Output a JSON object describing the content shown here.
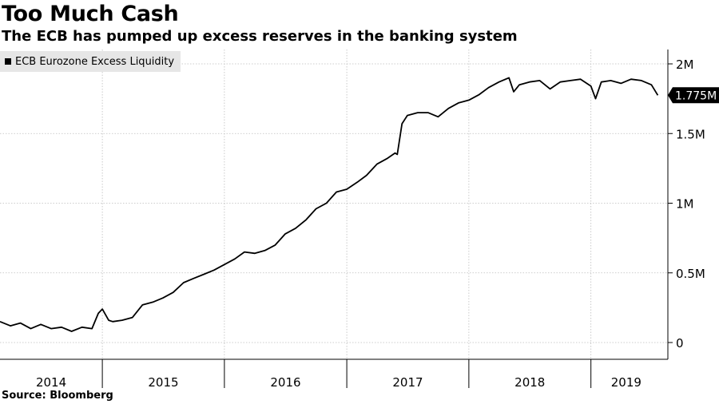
{
  "title": "Too Much Cash",
  "subtitle": "The ECB has pumped up excess reserves in the banking system",
  "source": "Source: Bloomberg",
  "chart_data": {
    "type": "line",
    "legend": "ECB Eurozone Excess Liquidity",
    "legend_position": "top-left",
    "grid": true,
    "series_color": "#000000",
    "last_value_label": "1.775M",
    "y_ticks": [
      {
        "value": 0,
        "label": "0"
      },
      {
        "value": 500000,
        "label": "0.5M"
      },
      {
        "value": 1000000,
        "label": "1M"
      },
      {
        "value": 1500000,
        "label": "1.5M"
      },
      {
        "value": 2000000,
        "label": "2M"
      }
    ],
    "ylim": [
      -50000,
      2100000
    ],
    "xlim": [
      "2014-03-01",
      "2019-07-31"
    ],
    "year_labels": [
      "2014",
      "2015",
      "2016",
      "2017",
      "2018",
      "2019"
    ],
    "series": [
      {
        "name": "ECB Eurozone Excess Liquidity",
        "points": [
          [
            "2014-03-01",
            150000
          ],
          [
            "2014-04-01",
            120000
          ],
          [
            "2014-05-01",
            140000
          ],
          [
            "2014-06-01",
            100000
          ],
          [
            "2014-07-01",
            130000
          ],
          [
            "2014-08-01",
            100000
          ],
          [
            "2014-09-01",
            110000
          ],
          [
            "2014-10-01",
            80000
          ],
          [
            "2014-11-01",
            110000
          ],
          [
            "2014-12-01",
            100000
          ],
          [
            "2014-12-20",
            210000
          ],
          [
            "2015-01-01",
            240000
          ],
          [
            "2015-01-20",
            160000
          ],
          [
            "2015-02-01",
            150000
          ],
          [
            "2015-03-01",
            160000
          ],
          [
            "2015-04-01",
            180000
          ],
          [
            "2015-05-01",
            270000
          ],
          [
            "2015-06-01",
            290000
          ],
          [
            "2015-07-01",
            320000
          ],
          [
            "2015-08-01",
            360000
          ],
          [
            "2015-09-01",
            430000
          ],
          [
            "2015-10-01",
            460000
          ],
          [
            "2015-11-01",
            490000
          ],
          [
            "2015-12-01",
            520000
          ],
          [
            "2016-01-01",
            560000
          ],
          [
            "2016-02-01",
            600000
          ],
          [
            "2016-03-01",
            650000
          ],
          [
            "2016-04-01",
            640000
          ],
          [
            "2016-05-01",
            660000
          ],
          [
            "2016-06-01",
            700000
          ],
          [
            "2016-07-01",
            780000
          ],
          [
            "2016-08-01",
            820000
          ],
          [
            "2016-09-01",
            880000
          ],
          [
            "2016-10-01",
            960000
          ],
          [
            "2016-11-01",
            1000000
          ],
          [
            "2016-12-01",
            1080000
          ],
          [
            "2017-01-01",
            1100000
          ],
          [
            "2017-02-01",
            1150000
          ],
          [
            "2017-03-01",
            1200000
          ],
          [
            "2017-04-01",
            1280000
          ],
          [
            "2017-05-01",
            1320000
          ],
          [
            "2017-05-25",
            1360000
          ],
          [
            "2017-06-01",
            1350000
          ],
          [
            "2017-06-15",
            1570000
          ],
          [
            "2017-07-01",
            1630000
          ],
          [
            "2017-08-01",
            1650000
          ],
          [
            "2017-09-01",
            1650000
          ],
          [
            "2017-10-01",
            1620000
          ],
          [
            "2017-11-01",
            1680000
          ],
          [
            "2017-12-01",
            1720000
          ],
          [
            "2018-01-01",
            1740000
          ],
          [
            "2018-02-01",
            1780000
          ],
          [
            "2018-03-01",
            1830000
          ],
          [
            "2018-04-01",
            1870000
          ],
          [
            "2018-05-01",
            1900000
          ],
          [
            "2018-05-15",
            1800000
          ],
          [
            "2018-06-01",
            1850000
          ],
          [
            "2018-07-01",
            1870000
          ],
          [
            "2018-08-01",
            1880000
          ],
          [
            "2018-09-01",
            1820000
          ],
          [
            "2018-10-01",
            1870000
          ],
          [
            "2018-11-01",
            1880000
          ],
          [
            "2018-12-01",
            1890000
          ],
          [
            "2019-01-01",
            1840000
          ],
          [
            "2019-01-15",
            1750000
          ],
          [
            "2019-02-01",
            1870000
          ],
          [
            "2019-03-01",
            1880000
          ],
          [
            "2019-04-01",
            1860000
          ],
          [
            "2019-05-01",
            1890000
          ],
          [
            "2019-06-01",
            1880000
          ],
          [
            "2019-07-01",
            1850000
          ],
          [
            "2019-07-20",
            1775000
          ]
        ]
      }
    ]
  }
}
